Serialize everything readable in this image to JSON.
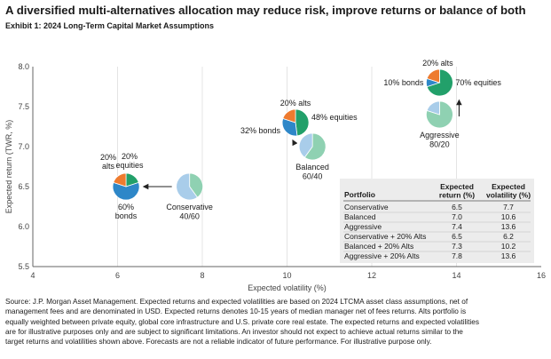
{
  "header": {
    "title": "A diversified multi-alternatives allocation may reduce risk, improve returns or balance of both",
    "subtitle": "Exhibit 1: 2024 Long-Term Capital Market Assumptions"
  },
  "colors": {
    "bonds": "#2e87c8",
    "equities": "#22a06a",
    "alts": "#ee7b2f",
    "baseline_light": "#a9cdea",
    "baseline_green": "#8fd1b2",
    "table_bg": "#ececec",
    "axis": "#666666",
    "grid": "#e4e4e4"
  },
  "chart_data": {
    "type": "scatter",
    "xlabel": "Expected volatility (%)",
    "ylabel": "Expected return (TWR, %)",
    "xlim": [
      4,
      16
    ],
    "ylim": [
      5.5,
      8.0
    ],
    "x_ticks": [
      "4",
      "6",
      "8",
      "10",
      "12",
      "14",
      "16"
    ],
    "y_ticks": [
      "5.5",
      "6.0",
      "6.5",
      "7.0",
      "7.5",
      "8.0"
    ],
    "points": [
      {
        "name": "Conservative",
        "x": 7.7,
        "y": 6.5,
        "label_lines": [
          "Conservative",
          "40/60"
        ],
        "bonds": 60,
        "equities": 40,
        "alts": 0
      },
      {
        "name": "Balanced",
        "x": 10.6,
        "y": 7.0,
        "label_lines": [
          "Balanced",
          "60/40"
        ],
        "bonds": 40,
        "equities": 60,
        "alts": 0
      },
      {
        "name": "Aggressive",
        "x": 13.6,
        "y": 7.4,
        "label_lines": [
          "Aggressive",
          "80/20"
        ],
        "bonds": 20,
        "equities": 80,
        "alts": 0
      },
      {
        "name": "Conservative + 20% Alts",
        "x": 6.2,
        "y": 6.5,
        "bonds": 60,
        "equities": 20,
        "alts": 20
      },
      {
        "name": "Balanced + 20% Alts",
        "x": 10.2,
        "y": 7.3,
        "bonds": 32,
        "equities": 48,
        "alts": 20
      },
      {
        "name": "Aggressive + 20% Alts",
        "x": 13.6,
        "y": 7.8,
        "bonds": 10,
        "equities": 70,
        "alts": 20
      }
    ],
    "slice_labels": {
      "conservative_alts": {
        "equities": [
          "20%",
          "equities"
        ],
        "alts": [
          "20%",
          "alts"
        ],
        "bonds": [
          "60%",
          "bonds"
        ]
      },
      "balanced_alts": {
        "alts": "20% alts",
        "equities": "48% equities",
        "bonds": "32% bonds"
      },
      "aggressive_alts": {
        "alts": "20% alts",
        "bonds": "10% bonds",
        "equities": "70% equities"
      }
    },
    "table": {
      "columns": [
        "Portfolio",
        "Expected return (%)",
        "Expected volatility (%)"
      ],
      "column_lines": [
        [
          "Portfolio"
        ],
        [
          "Expected",
          "return (%)"
        ],
        [
          "Expected",
          "volatility (%)"
        ]
      ],
      "rows": [
        [
          "Conservative",
          "6.5",
          "7.7"
        ],
        [
          "Balanced",
          "7.0",
          "10.6"
        ],
        [
          "Aggressive",
          "7.4",
          "13.6"
        ],
        [
          "Conservative + 20% Alts",
          "6.5",
          "6.2"
        ],
        [
          "Balanced + 20% Alts",
          "7.3",
          "10.2"
        ],
        [
          "Aggressive + 20% Alts",
          "7.8",
          "13.6"
        ]
      ]
    }
  },
  "footnote": {
    "lines": [
      "Source: J.P. Morgan Asset Management. Expected returns and expected volatilities are based on 2024 LTCMA asset class assumptions, net of",
      "management fees and are denominated in USD. Expected returns denotes 10-15 years of median manager net of fees returns. Alts portfolio is",
      "equally weighted between private equity, global core infrastructure and U.S. private core real estate. The expected returns and expected volatilities",
      "are for illustrative purposes only and are subject to significant limitations. An investor should not expect to achieve actual returns similar to the",
      "target returns and volatilities shown above. Forecasts are not a reliable indicator of future performance. For illustrative purpose only."
    ]
  }
}
